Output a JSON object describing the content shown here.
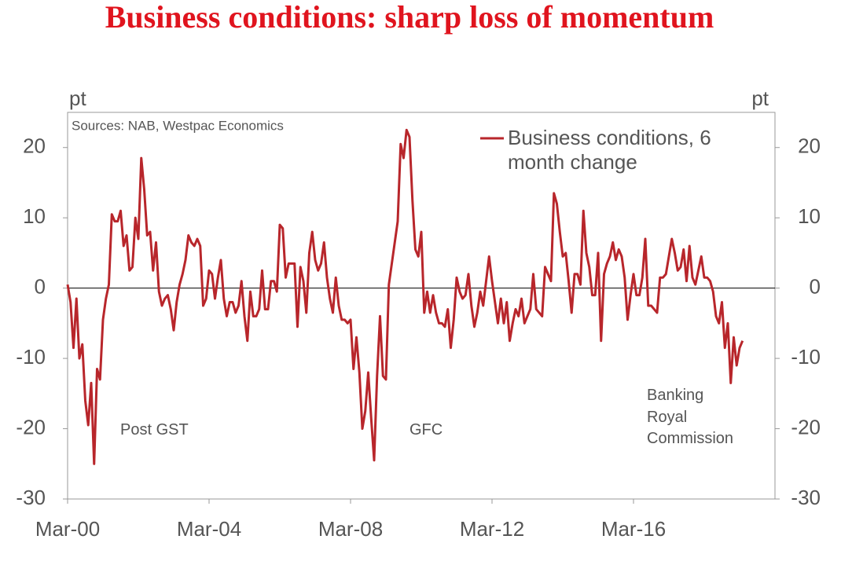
{
  "chart_data": {
    "type": "line",
    "title": "Business conditions: sharp loss of momentum",
    "source": "Sources: NAB, Westpac Economics",
    "ylabel": "pt",
    "y2label": "pt",
    "categories": [
      "Mar-00",
      null,
      null,
      null,
      null,
      null,
      null,
      null,
      null,
      null,
      null,
      null,
      null,
      null,
      null,
      null,
      null,
      null,
      null,
      null,
      null,
      null,
      null,
      null,
      null,
      null,
      null,
      null,
      null,
      null,
      null,
      null,
      null,
      null,
      null,
      null,
      null,
      null,
      null,
      null,
      null,
      null,
      null,
      null,
      null,
      null,
      null,
      null,
      "Mar-04",
      null,
      null,
      null,
      null,
      null,
      null,
      null,
      null,
      null,
      null,
      null,
      null,
      null,
      null,
      null,
      null,
      null,
      null,
      null,
      null,
      null,
      null,
      null,
      null,
      null,
      null,
      null,
      null,
      null,
      null,
      null,
      null,
      null,
      null,
      null,
      null,
      null,
      null,
      null,
      null,
      null,
      null,
      null,
      null,
      null,
      null,
      null,
      "Mar-08",
      null,
      null,
      null,
      null,
      null,
      null,
      null,
      null,
      null,
      null,
      null,
      null,
      null,
      null,
      null,
      null,
      null,
      null,
      null,
      null,
      null,
      null,
      null,
      null,
      null,
      null,
      null,
      null,
      null,
      null,
      null,
      null,
      null,
      null,
      null,
      null,
      null,
      null,
      null,
      null,
      null,
      null,
      null,
      null,
      null,
      null,
      null,
      "Mar-12",
      null,
      null,
      null,
      null,
      null,
      null,
      null,
      null,
      null,
      null,
      null,
      null,
      null,
      null,
      null,
      null,
      null,
      null,
      null,
      null,
      null,
      null,
      null,
      null,
      null,
      null,
      null,
      null,
      null,
      null,
      null,
      null,
      null,
      null,
      null,
      null,
      null,
      null,
      null,
      null,
      null,
      null,
      null,
      null,
      null,
      null,
      null,
      "Mar-16",
      null,
      null,
      null,
      null,
      null,
      null,
      null,
      null,
      null,
      null,
      null,
      null,
      null,
      null,
      null,
      null,
      null,
      null,
      null,
      null,
      null,
      null,
      null,
      null,
      null,
      null,
      null,
      null,
      null,
      null,
      null,
      null,
      null,
      null,
      null,
      null,
      null,
      null,
      null,
      null,
      null,
      null,
      null,
      null,
      null,
      null,
      null,
      null
    ],
    "series": [
      {
        "name": "Business conditions, 6 month change",
        "color": "#b8262b",
        "values": [
          0.5,
          -2,
          -8.5,
          -1.5,
          -10,
          -8,
          -16,
          -19.5,
          -13.5,
          -25,
          -11.5,
          -13,
          -4.5,
          -1.5,
          0.5,
          10.5,
          9.5,
          9.5,
          11,
          6,
          7.5,
          2.5,
          3,
          10,
          7,
          18.5,
          14,
          7.5,
          8,
          2.5,
          6.5,
          -0.5,
          -2.5,
          -1.5,
          -1,
          -3,
          -6,
          -2,
          0.5,
          2,
          4,
          7.5,
          6.5,
          6,
          7,
          6,
          -2.5,
          -1.5,
          2.5,
          2,
          -1.5,
          1.5,
          4,
          -1.5,
          -4,
          -2,
          -2,
          -3.5,
          -2.5,
          1,
          -4,
          -7.5,
          -0.5,
          -4,
          -4,
          -3,
          2.5,
          -3,
          -3,
          1,
          1,
          -0.5,
          9,
          8.5,
          1.5,
          3.5,
          3.5,
          3.5,
          -5.5,
          3,
          1,
          -3.5,
          5,
          8,
          4,
          2.5,
          3.5,
          6.5,
          1.5,
          -1.5,
          -3.5,
          1.5,
          -2.5,
          -4.5,
          -4.5,
          -5,
          -4.5,
          -11.5,
          -7,
          -12,
          -20,
          -17.5,
          -12,
          -18.5,
          -24.5,
          -12.5,
          -4,
          -12.5,
          -13,
          0.5,
          3.5,
          6.5,
          9.5,
          20.5,
          18.5,
          22.5,
          21.5,
          12.5,
          5.5,
          4.5,
          8,
          -3.5,
          -0.5,
          -3.5,
          -1,
          -3.5,
          -5,
          -5,
          -5.5,
          -3,
          -8.5,
          -4.5,
          1.5,
          -0.5,
          -1.5,
          -1,
          2,
          -2.5,
          -5.5,
          -3.5,
          -0.5,
          -2.5,
          1,
          4.5,
          1,
          -2,
          -5,
          -1.5,
          -5,
          -2,
          -7.5,
          -5,
          -3,
          -4,
          -1.5,
          -5,
          -4,
          -3,
          2,
          -3,
          -3.5,
          -4,
          3,
          2,
          1,
          13.5,
          12,
          8,
          4.5,
          5,
          1,
          -3.5,
          2,
          2,
          0.5,
          11,
          5,
          3,
          -1,
          -1,
          5,
          -7.5,
          2,
          3.5,
          4.5,
          6.5,
          4,
          5.5,
          4.5,
          1.5,
          -4.5,
          -1,
          2,
          -1,
          -1,
          1.5,
          7,
          -2.5,
          -2.5,
          -3,
          -3.5,
          1.5,
          1.5,
          2,
          4.5,
          7,
          5,
          2.5,
          3,
          5.5,
          1,
          6,
          1.5,
          0.5,
          2.5,
          4.5,
          1.5,
          1.5,
          1,
          -0.5,
          -4,
          -5,
          -2,
          -8.5,
          -5,
          -13.5,
          -7,
          -11,
          -8.5,
          -7.5,
          null,
          null,
          null,
          null,
          null,
          null,
          null,
          null,
          null,
          null,
          null
        ]
      }
    ],
    "ylim": [
      -30,
      25
    ],
    "yticks": [
      -30,
      -20,
      -10,
      0,
      10,
      20
    ],
    "y2lim": [
      -30,
      25
    ],
    "y2ticks": [
      -30,
      -20,
      -10,
      0,
      10,
      20
    ],
    "annotations": [
      "Post GST",
      "GFC",
      "Banking Royal Commission"
    ]
  }
}
